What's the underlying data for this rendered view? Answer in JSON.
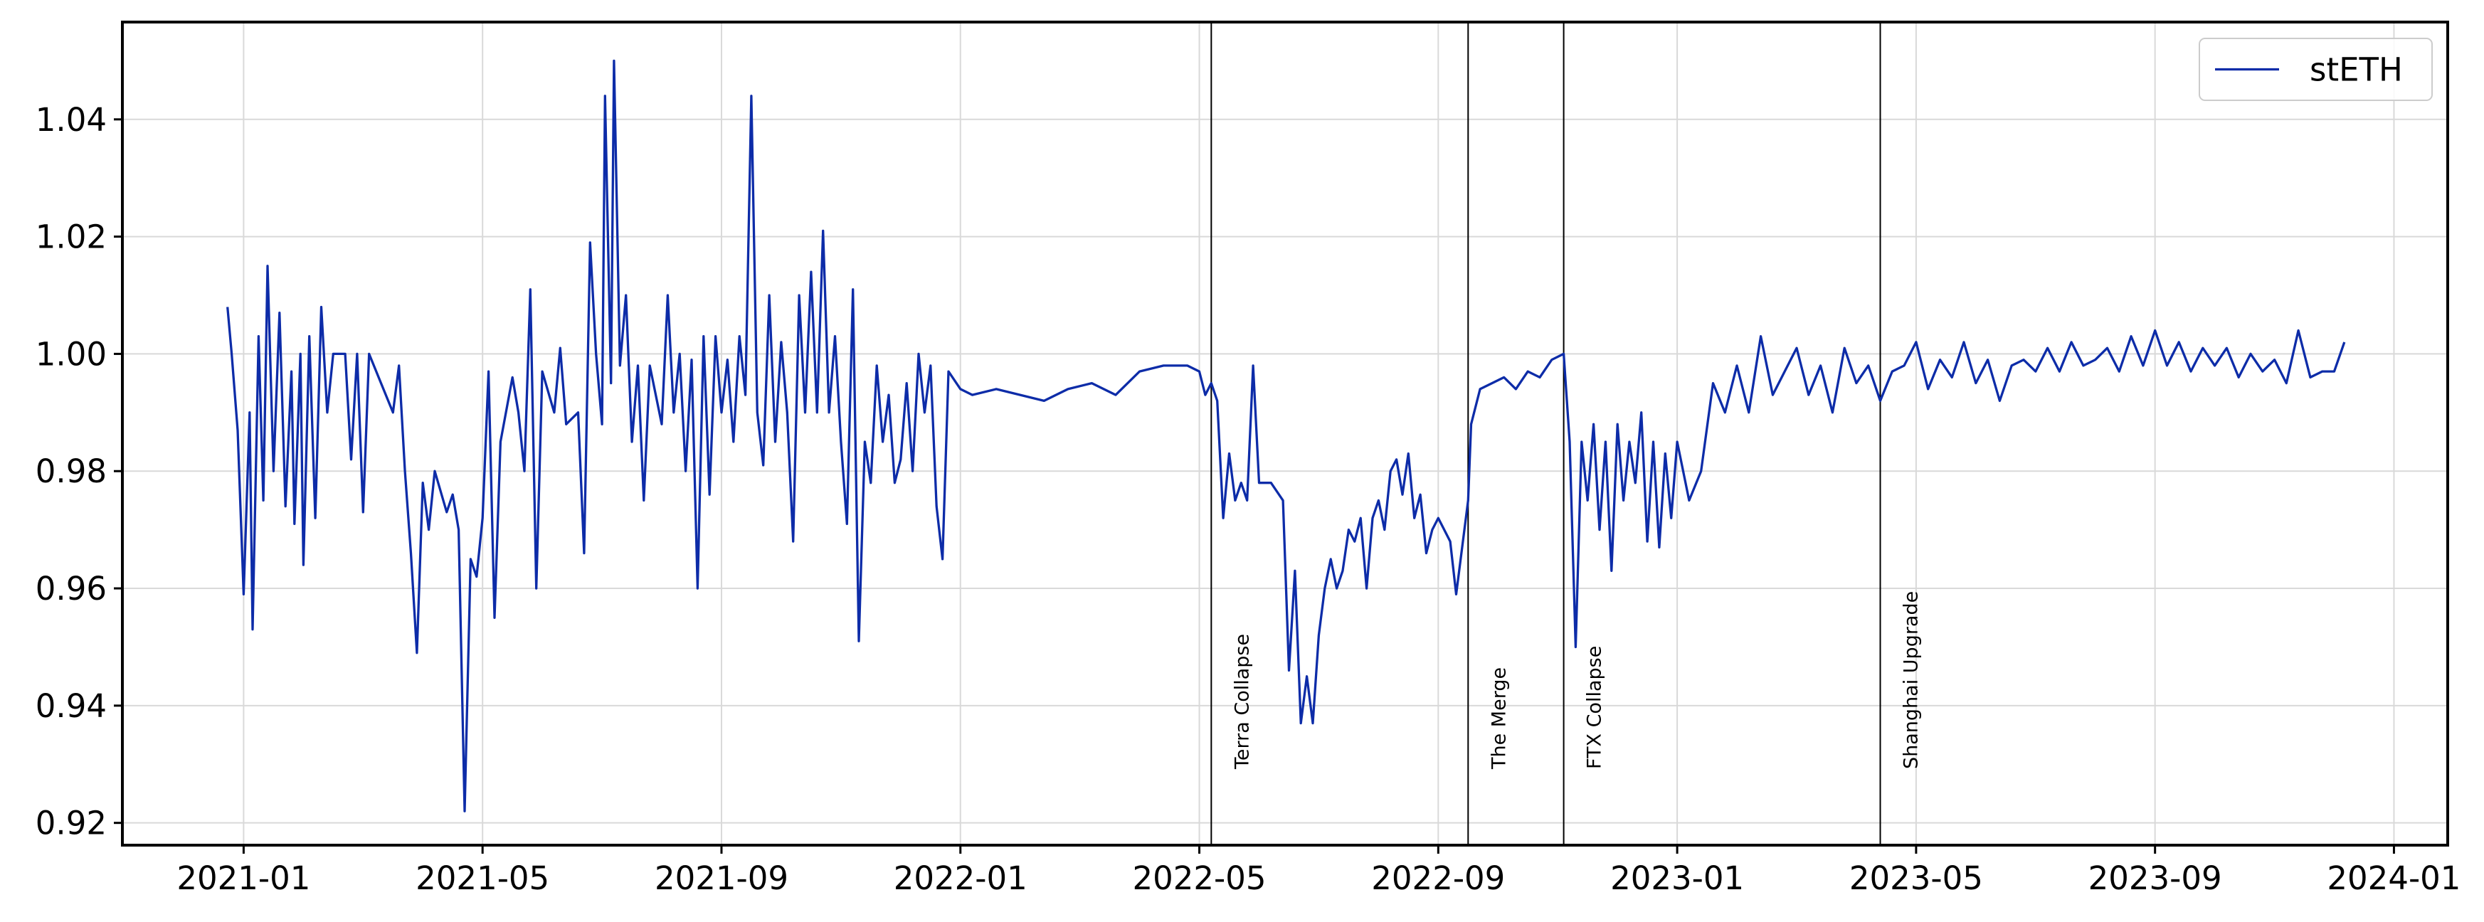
{
  "chart_data": {
    "type": "line",
    "xlim": [
      -2.03,
      36.9
    ],
    "ylim": [
      0.9162,
      1.0566
    ],
    "xticks": [
      {
        "value": 0,
        "label": "2021-01"
      },
      {
        "value": 4,
        "label": "2021-05"
      },
      {
        "value": 8,
        "label": "2021-09"
      },
      {
        "value": 12,
        "label": "2022-01"
      },
      {
        "value": 16,
        "label": "2022-05"
      },
      {
        "value": 20,
        "label": "2022-09"
      },
      {
        "value": 24,
        "label": "2023-01"
      },
      {
        "value": 28,
        "label": "2023-05"
      },
      {
        "value": 32,
        "label": "2023-09"
      },
      {
        "value": 36,
        "label": "2024-01"
      }
    ],
    "yticks": [
      {
        "value": 0.92,
        "label": "0.92"
      },
      {
        "value": 0.94,
        "label": "0.94"
      },
      {
        "value": 0.96,
        "label": "0.96"
      },
      {
        "value": 0.98,
        "label": "0.98"
      },
      {
        "value": 1.0,
        "label": "1.00"
      },
      {
        "value": 1.02,
        "label": "1.02"
      },
      {
        "value": 1.04,
        "label": "1.04"
      }
    ],
    "grid": true,
    "legend_position": "upper right",
    "events": [
      {
        "label": "Terra Collapse",
        "x": 16.2
      },
      {
        "label": "The Merge",
        "x": 20.5
      },
      {
        "label": "FTX Collapse",
        "x": 22.1
      },
      {
        "label": "Shanghai Upgrade",
        "x": 27.4
      }
    ],
    "series": [
      {
        "name": "stETH",
        "color": "#0d2ca8",
        "x": [
          -0.27,
          -0.2,
          -0.1,
          0.0,
          0.1,
          0.15,
          0.25,
          0.33,
          0.4,
          0.5,
          0.6,
          0.7,
          0.8,
          0.85,
          0.95,
          1.0,
          1.1,
          1.2,
          1.3,
          1.4,
          1.5,
          1.7,
          1.8,
          1.9,
          2.0,
          2.1,
          2.3,
          2.5,
          2.6,
          2.7,
          2.8,
          2.9,
          3.0,
          3.1,
          3.2,
          3.4,
          3.5,
          3.6,
          3.7,
          3.8,
          3.9,
          4.0,
          4.1,
          4.2,
          4.3,
          4.5,
          4.6,
          4.7,
          4.8,
          4.9,
          5.0,
          5.2,
          5.3,
          5.4,
          5.6,
          5.7,
          5.8,
          5.9,
          6.0,
          6.05,
          6.15,
          6.2,
          6.3,
          6.4,
          6.5,
          6.6,
          6.7,
          6.8,
          7.0,
          7.1,
          7.2,
          7.3,
          7.4,
          7.5,
          7.6,
          7.7,
          7.8,
          7.9,
          8.0,
          8.1,
          8.2,
          8.3,
          8.4,
          8.5,
          8.6,
          8.7,
          8.8,
          8.9,
          9.0,
          9.1,
          9.2,
          9.3,
          9.4,
          9.5,
          9.6,
          9.7,
          9.8,
          9.9,
          10.0,
          10.1,
          10.2,
          10.3,
          10.4,
          10.5,
          10.6,
          10.7,
          10.8,
          10.9,
          11.0,
          11.1,
          11.2,
          11.3,
          11.4,
          11.5,
          11.6,
          11.7,
          11.8,
          12.0,
          12.2,
          12.6,
          13.0,
          13.4,
          13.8,
          14.2,
          14.6,
          15.0,
          15.4,
          15.8,
          16.0,
          16.1,
          16.2,
          16.3,
          16.4,
          16.5,
          16.6,
          16.7,
          16.8,
          16.9,
          17.0,
          17.2,
          17.4,
          17.5,
          17.6,
          17.7,
          17.8,
          17.9,
          18.0,
          18.1,
          18.2,
          18.3,
          18.4,
          18.5,
          18.6,
          18.7,
          18.8,
          18.9,
          19.0,
          19.1,
          19.2,
          19.3,
          19.4,
          19.5,
          19.6,
          19.7,
          19.8,
          19.9,
          20.0,
          20.1,
          20.2,
          20.3,
          20.4,
          20.5,
          20.55,
          20.7,
          20.9,
          21.1,
          21.3,
          21.5,
          21.7,
          21.9,
          22.1,
          22.2,
          22.3,
          22.4,
          22.5,
          22.6,
          22.7,
          22.8,
          22.9,
          23.0,
          23.1,
          23.2,
          23.3,
          23.4,
          23.5,
          23.6,
          23.7,
          23.8,
          23.9,
          24.0,
          24.2,
          24.4,
          24.6,
          24.8,
          25.0,
          25.2,
          25.4,
          25.6,
          25.8,
          26.0,
          26.2,
          26.4,
          26.6,
          26.8,
          27.0,
          27.2,
          27.4,
          27.6,
          27.8,
          28.0,
          28.2,
          28.4,
          28.6,
          28.8,
          29.0,
          29.2,
          29.4,
          29.6,
          29.8,
          30.0,
          30.2,
          30.4,
          30.6,
          30.8,
          31.0,
          31.2,
          31.4,
          31.6,
          31.8,
          32.0,
          32.2,
          32.4,
          32.6,
          32.8,
          33.0,
          33.2,
          33.4,
          33.6,
          33.8,
          34.0,
          34.2,
          34.4,
          34.6,
          34.8,
          35.0,
          35.17
        ],
        "values": [
          1.008,
          1.0,
          0.987,
          0.959,
          0.99,
          0.953,
          1.003,
          0.975,
          1.015,
          0.98,
          1.007,
          0.974,
          0.997,
          0.971,
          1.0,
          0.964,
          1.003,
          0.972,
          1.008,
          0.99,
          1.0,
          1.0,
          0.982,
          1.0,
          0.973,
          1.0,
          0.995,
          0.99,
          0.998,
          0.98,
          0.966,
          0.949,
          0.978,
          0.97,
          0.98,
          0.973,
          0.976,
          0.97,
          0.922,
          0.965,
          0.962,
          0.972,
          0.997,
          0.955,
          0.985,
          0.996,
          0.99,
          0.98,
          1.011,
          0.96,
          0.997,
          0.99,
          1.001,
          0.988,
          0.99,
          0.966,
          1.019,
          1.0,
          0.988,
          1.044,
          0.995,
          1.05,
          0.998,
          1.01,
          0.985,
          0.998,
          0.975,
          0.998,
          0.988,
          1.01,
          0.99,
          1.0,
          0.98,
          0.999,
          0.96,
          1.003,
          0.976,
          1.003,
          0.99,
          0.999,
          0.985,
          1.003,
          0.993,
          1.044,
          0.99,
          0.981,
          1.01,
          0.985,
          1.002,
          0.99,
          0.968,
          1.01,
          0.99,
          1.014,
          0.99,
          1.021,
          0.99,
          1.003,
          0.985,
          0.971,
          1.011,
          0.951,
          0.985,
          0.978,
          0.998,
          0.985,
          0.993,
          0.978,
          0.982,
          0.995,
          0.98,
          1.0,
          0.99,
          0.998,
          0.974,
          0.965,
          0.997,
          0.994,
          0.993,
          0.994,
          0.993,
          0.992,
          0.994,
          0.995,
          0.993,
          0.997,
          0.998,
          0.998,
          0.997,
          0.993,
          0.995,
          0.992,
          0.972,
          0.983,
          0.975,
          0.978,
          0.975,
          0.998,
          0.978,
          0.978,
          0.975,
          0.946,
          0.963,
          0.937,
          0.945,
          0.937,
          0.952,
          0.96,
          0.965,
          0.96,
          0.963,
          0.97,
          0.968,
          0.972,
          0.96,
          0.972,
          0.975,
          0.97,
          0.98,
          0.982,
          0.976,
          0.983,
          0.972,
          0.976,
          0.966,
          0.97,
          0.972,
          0.97,
          0.968,
          0.959,
          0.967,
          0.975,
          0.988,
          0.994,
          0.995,
          0.996,
          0.994,
          0.997,
          0.996,
          0.999,
          1.0,
          0.985,
          0.95,
          0.985,
          0.975,
          0.988,
          0.97,
          0.985,
          0.963,
          0.988,
          0.975,
          0.985,
          0.978,
          0.99,
          0.968,
          0.985,
          0.967,
          0.983,
          0.972,
          0.985,
          0.975,
          0.98,
          0.995,
          0.99,
          0.998,
          0.99,
          1.003,
          0.993,
          0.997,
          1.001,
          0.993,
          0.998,
          0.99,
          1.001,
          0.995,
          0.998,
          0.992,
          0.997,
          0.998,
          1.002,
          0.994,
          0.999,
          0.996,
          1.002,
          0.995,
          0.999,
          0.992,
          0.998,
          0.999,
          0.997,
          1.001,
          0.997,
          1.002,
          0.998,
          0.999,
          1.001,
          0.997,
          1.003,
          0.998,
          1.004,
          0.998,
          1.002,
          0.997,
          1.001,
          0.998,
          1.001,
          0.996,
          1.0,
          0.997,
          0.999,
          0.995,
          1.004,
          0.996,
          0.997,
          0.997,
          1.002
        ]
      }
    ]
  }
}
